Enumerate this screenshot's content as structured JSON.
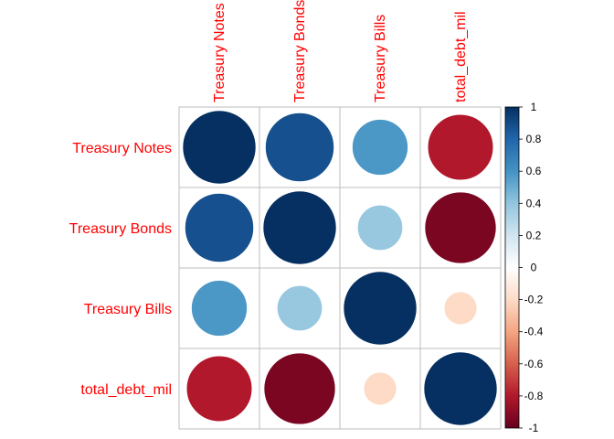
{
  "chart_data": {
    "type": "heatmap",
    "style": "correlation-circles",
    "variables": [
      "Treasury Notes",
      "Treasury Bonds",
      "Treasury Bills",
      "total_debt_mil"
    ],
    "matrix": [
      [
        1.0,
        0.88,
        0.58,
        -0.8
      ],
      [
        0.88,
        1.0,
        0.38,
        -0.95
      ],
      [
        0.58,
        0.38,
        1.0,
        -0.2
      ],
      [
        -0.8,
        -0.95,
        -0.2,
        1.0
      ]
    ],
    "row_labels": [
      "Treasury Notes",
      "Treasury Bonds",
      "Treasury Bills",
      "total_debt_mil"
    ],
    "col_labels": [
      "Treasury Notes",
      "Treasury Bonds",
      "Treasury Bills",
      "total_debt_mil"
    ],
    "colorbar": {
      "range": [
        -1,
        1
      ],
      "ticks": [
        "1",
        "0.8",
        "0.6",
        "0.4",
        "0.2",
        "0",
        "-0.2",
        "-0.4",
        "-0.6",
        "-0.8",
        "-1"
      ],
      "tick_values": [
        1,
        0.8,
        0.6,
        0.4,
        0.2,
        0,
        -0.2,
        -0.4,
        -0.6,
        -0.8,
        -1
      ],
      "placement": "right"
    },
    "colors": {
      "label": "#ff0000",
      "grid": "#bebebe",
      "scale": [
        "#67001f",
        "#b2182b",
        "#d6604d",
        "#f4a582",
        "#fddbc7",
        "#ffffff",
        "#d1e5f0",
        "#92c5de",
        "#4393c3",
        "#2166ac",
        "#053061"
      ]
    }
  }
}
